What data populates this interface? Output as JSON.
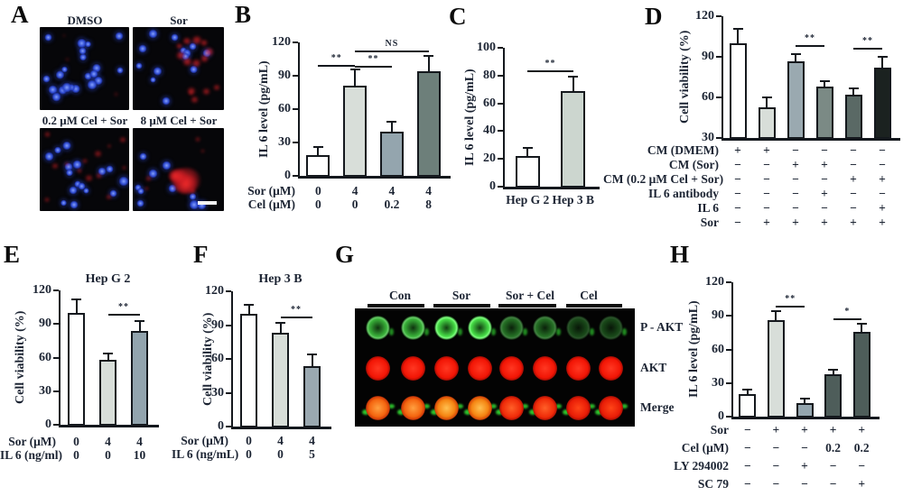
{
  "colors": {
    "ink": "#1c2433",
    "axis": "#14181d",
    "bar_white": "#ffffff",
    "bar_light": "#d8ded9",
    "bar_bluegray": "#94a5ae",
    "bar_slate": "#6d7f7a",
    "bar_black": "#1b2220",
    "nucleus_blue": "#2e4ad0",
    "stain_red": "#d81f28",
    "pakt_green": "#35e535",
    "akt_red": "#f21505"
  },
  "panels": {
    "A": {
      "label": "A",
      "micrographs": [
        {
          "title": "DMSO",
          "red_level": "low"
        },
        {
          "title": "Sor",
          "red_level": "high"
        },
        {
          "title": "0.2 μM Cel + Sor",
          "red_level": "medium"
        },
        {
          "title": "8 μM Cel + Sor",
          "red_level": "high-clustered"
        }
      ],
      "has_scale_bar": true
    },
    "G": {
      "label": "G",
      "columns": [
        "Con",
        "Sor",
        "Sor + Cel",
        "Cel"
      ],
      "row_labels": [
        "P - AKT",
        "AKT",
        "Merge"
      ],
      "wells_per_column": 2,
      "pakt_green_intensity": [
        0.8,
        1.0,
        0.5,
        0.32
      ]
    }
  },
  "chart_data": [
    {
      "id": "B",
      "panel_label": "B",
      "type": "bar",
      "ylabel": "IL 6 level (pg/mL)",
      "ylim": [
        0,
        120
      ],
      "yticks": [
        0,
        30,
        60,
        90,
        120
      ],
      "values": [
        19,
        81,
        40,
        94
      ],
      "errors": [
        7,
        15,
        9,
        14
      ],
      "bar_colors": [
        "#ffffff",
        "#d8ded9",
        "#94a5ae",
        "#6d7f7a"
      ],
      "x_rows": [
        {
          "label": "Sor (μM)",
          "values": [
            "0",
            "4",
            "4",
            "4"
          ]
        },
        {
          "label": "Cel (μM)",
          "values": [
            "0",
            "0",
            "0.2",
            "8"
          ]
        }
      ],
      "significance": [
        {
          "from": 0,
          "to": 1,
          "label": "**",
          "y": 100
        },
        {
          "from": 1,
          "to": 2,
          "label": "**",
          "y": 99
        },
        {
          "from": 1,
          "to": 3,
          "label": "NS",
          "y": 113
        }
      ]
    },
    {
      "id": "C",
      "panel_label": "C",
      "type": "bar",
      "ylabel": "IL 6 level (pg/mL)",
      "ylim": [
        0,
        100
      ],
      "yticks": [
        0,
        20,
        40,
        60,
        80,
        100
      ],
      "categories": [
        "Hep G 2",
        "Hep 3 B"
      ],
      "values": [
        22,
        69
      ],
      "errors": [
        6,
        10
      ],
      "bar_colors": [
        "#ffffff",
        "#ccd6cf"
      ],
      "significance": [
        {
          "from": 0,
          "to": 1,
          "label": "**",
          "y": 84
        }
      ]
    },
    {
      "id": "D",
      "panel_label": "D",
      "type": "bar",
      "ylabel": "Cell viability (%)",
      "ylim": [
        30,
        120
      ],
      "yticks": [
        30,
        60,
        90,
        120
      ],
      "values": [
        100,
        53,
        87,
        68,
        62,
        82
      ],
      "errors": [
        11,
        7,
        5,
        4,
        5,
        8
      ],
      "bar_colors": [
        "#ffffff",
        "#d8ded9",
        "#9aa9b0",
        "#7b8a85",
        "#5a6965",
        "#1b2220"
      ],
      "x_rows": [
        {
          "label": "CM (DMEM)",
          "values": [
            "+",
            "+",
            "−",
            "−",
            "−",
            "−"
          ]
        },
        {
          "label": "CM (Sor)",
          "values": [
            "−",
            "−",
            "+",
            "+",
            "−",
            "−"
          ]
        },
        {
          "label": "CM (0.2 μM Cel + Sor)",
          "values": [
            "−",
            "−",
            "−",
            "−",
            "+",
            "+"
          ]
        },
        {
          "label": "IL 6 antibody",
          "values": [
            "−",
            "−",
            "−",
            "+",
            "−",
            "−"
          ]
        },
        {
          "label": "IL 6",
          "values": [
            "−",
            "−",
            "−",
            "−",
            "−",
            "+"
          ]
        },
        {
          "label": "Sor",
          "values": [
            "−",
            "+",
            "+",
            "+",
            "+",
            "+"
          ]
        }
      ],
      "significance": [
        {
          "from": 2,
          "to": 3,
          "label": "**",
          "y": 99
        },
        {
          "from": 4,
          "to": 5,
          "label": "**",
          "y": 97
        }
      ]
    },
    {
      "id": "E",
      "panel_label": "E",
      "type": "bar",
      "title": "Hep G 2",
      "ylabel": "Cell viability (%)",
      "ylim": [
        0,
        120
      ],
      "yticks": [
        0,
        30,
        60,
        90,
        120
      ],
      "values": [
        100,
        58,
        84
      ],
      "errors": [
        12,
        6,
        9
      ],
      "bar_colors": [
        "#ffffff",
        "#d8ded9",
        "#92a4ae"
      ],
      "x_rows": [
        {
          "label": "Sor (μM)",
          "values": [
            "0",
            "4",
            "4"
          ]
        },
        {
          "label": "IL 6 (ng/ml)",
          "values": [
            "0",
            "0",
            "10"
          ]
        }
      ],
      "significance": [
        {
          "from": 1,
          "to": 2,
          "label": "**",
          "y": 99
        }
      ]
    },
    {
      "id": "F",
      "panel_label": "F",
      "type": "bar",
      "title": "Hep 3 B",
      "ylabel": "Cell viability (%)",
      "ylim": [
        0,
        120
      ],
      "yticks": [
        0,
        30,
        60,
        90,
        120
      ],
      "values": [
        100,
        83,
        54
      ],
      "errors": [
        8,
        9,
        10
      ],
      "bar_colors": [
        "#ffffff",
        "#d8ded9",
        "#9aa8b0"
      ],
      "x_rows": [
        {
          "label": "Sor (μM)",
          "values": [
            "0",
            "4",
            "4"
          ]
        },
        {
          "label": "IL 6 (ng/mL)",
          "values": [
            "0",
            "0",
            "5"
          ]
        }
      ],
      "significance": [
        {
          "from": 1,
          "to": 2,
          "label": "**",
          "y": 98
        }
      ]
    },
    {
      "id": "H",
      "panel_label": "H",
      "type": "bar",
      "ylabel": "IL 6 level (pg/mL)",
      "ylim": [
        0,
        120
      ],
      "yticks": [
        0,
        30,
        60,
        90,
        120
      ],
      "values": [
        20,
        86,
        12,
        38,
        76
      ],
      "errors": [
        4,
        8,
        4,
        4,
        7
      ],
      "bar_colors": [
        "#ffffff",
        "#d8ded9",
        "#94a5ae",
        "#4e5d5a",
        "#4e5d5a"
      ],
      "x_rows": [
        {
          "label": "Sor",
          "values": [
            "−",
            "+",
            "+",
            "+",
            "+"
          ]
        },
        {
          "label": "Cel (μM)",
          "values": [
            "−",
            "−",
            "−",
            "0.2",
            "0.2"
          ]
        },
        {
          "label": "LY 294002",
          "values": [
            "−",
            "−",
            "+",
            "−",
            "−"
          ]
        },
        {
          "label": "SC 79",
          "values": [
            "−",
            "−",
            "−",
            "−",
            "+"
          ]
        }
      ],
      "significance": [
        {
          "from": 1,
          "to": 2,
          "label": "**",
          "y": 99
        },
        {
          "from": 3,
          "to": 4,
          "label": "*",
          "y": 88
        }
      ]
    }
  ]
}
